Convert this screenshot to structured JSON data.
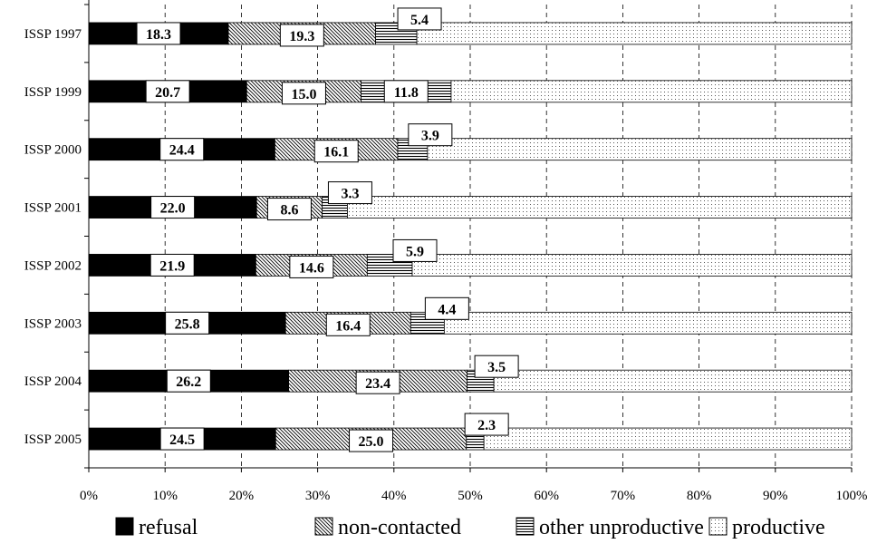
{
  "chart_data": {
    "type": "bar",
    "orientation": "horizontal",
    "stacked": true,
    "categories": [
      "ISSP 1997",
      "ISSP 1999",
      "ISSP 2000",
      "ISSP 2001",
      "ISSP 2002",
      "ISSP 2003",
      "ISSP 2004",
      "ISSP 2005"
    ],
    "series": [
      {
        "name": "refusal",
        "values": [
          18.3,
          20.7,
          24.4,
          22.0,
          21.9,
          25.8,
          26.2,
          24.5
        ],
        "labels": [
          "18.3",
          "20.7",
          "24.4",
          "22.0",
          "21.9",
          "25.8",
          "26.2",
          "24.5"
        ]
      },
      {
        "name": "non-contacted",
        "values": [
          19.3,
          15.0,
          16.1,
          8.6,
          14.6,
          16.4,
          23.4,
          25.0
        ],
        "labels": [
          "19.3",
          "15.0",
          "16.1",
          "8.6",
          "14.6",
          "16.4",
          "23.4",
          "25.0"
        ]
      },
      {
        "name": "other unproductive",
        "values": [
          5.4,
          11.8,
          3.9,
          3.3,
          5.9,
          4.4,
          3.5,
          2.3
        ],
        "labels": [
          "5.4",
          "11.8",
          "3.9",
          "3.3",
          "5.9",
          "4.4",
          "3.5",
          "2.3"
        ]
      },
      {
        "name": "productive",
        "values": [
          57.0,
          52.5,
          55.6,
          66.1,
          57.6,
          53.4,
          46.9,
          48.2
        ]
      }
    ],
    "xlim": [
      0,
      100
    ],
    "xticks": [
      "0%",
      "10%",
      "20%",
      "30%",
      "40%",
      "50%",
      "60%",
      "70%",
      "80%",
      "90%",
      "100%"
    ],
    "grid": "vertical-dashed",
    "legend": "bottom",
    "xlabel": "",
    "ylabel": ""
  }
}
